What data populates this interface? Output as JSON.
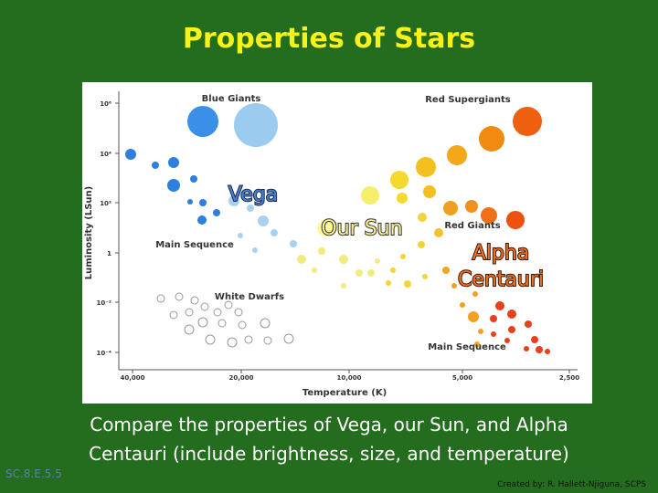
{
  "title": "Properties of Stars",
  "diagram": {
    "y_label": "Luminosity (LSun)",
    "x_label": "Temperature (K)",
    "x_ticks": [
      "40,000",
      "20,000",
      "10,000",
      "5,000",
      "2,500"
    ],
    "y_ticks": [
      "10⁶",
      "10⁴",
      "10²",
      "1",
      "10⁻²",
      "10⁻⁴"
    ],
    "regions": [
      "Blue Giants",
      "Red Supergiants",
      "Main Sequence",
      "Red Giants",
      "White Dwarfs",
      "Main Sequence"
    ],
    "stars": {
      "vega": "Vega",
      "sun": "Our Sun",
      "alpha_centauri": [
        "Alpha",
        "Centauri"
      ]
    }
  },
  "caption": [
    "Compare the properties of Vega, our Sun, and Alpha",
    "Centauri (include brightness, size, and temperature)"
  ],
  "standard": "SC.8.E.5.5",
  "credit": "Created by: R. Hallett-Njiguna, SCPS"
}
